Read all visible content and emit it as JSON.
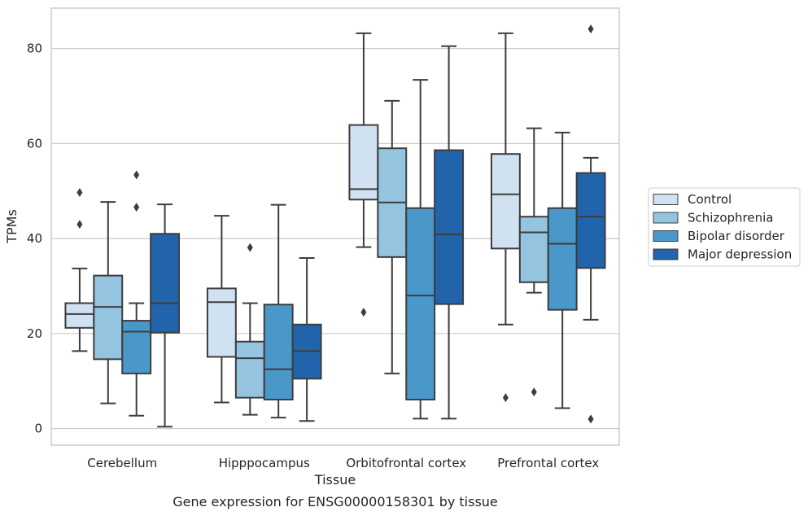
{
  "chart_data": {
    "type": "box",
    "title": "",
    "caption": "Gene expression for ENSG00000158301 by tissue",
    "xlabel": "Tissue",
    "ylabel": "TPMs",
    "ylim": [
      -3.5,
      88.5
    ],
    "yticks": [
      0,
      20,
      40,
      60,
      80
    ],
    "grid": "horizontal",
    "legend_position": "right",
    "categories": [
      "Cerebellum",
      "Hipppocampus",
      "Orbitofrontal cortex",
      "Prefrontal cortex"
    ],
    "series": [
      {
        "name": "Control",
        "color": "#d0e1f2",
        "boxes": [
          {
            "whislo": 16.3,
            "q1": 21.2,
            "med": 24.1,
            "q3": 26.4,
            "whishi": 33.7,
            "fliers": [
              49.7,
              43.0
            ]
          },
          {
            "whislo": 5.5,
            "q1": 15.1,
            "med": 26.6,
            "q3": 29.5,
            "whishi": 44.8,
            "fliers": []
          },
          {
            "whislo": 38.2,
            "q1": 48.2,
            "med": 50.4,
            "q3": 63.9,
            "whishi": 83.2,
            "fliers": [
              24.5
            ]
          },
          {
            "whislo": 21.9,
            "q1": 37.9,
            "med": 49.3,
            "q3": 57.8,
            "whishi": 83.2,
            "fliers": [
              6.5
            ]
          }
        ]
      },
      {
        "name": "Schizophrenia",
        "color": "#94c4df",
        "boxes": [
          {
            "whislo": 5.3,
            "q1": 14.6,
            "med": 25.6,
            "q3": 32.2,
            "whishi": 47.7,
            "fliers": []
          },
          {
            "whislo": 2.9,
            "q1": 6.5,
            "med": 14.8,
            "q3": 18.3,
            "whishi": 26.4,
            "fliers": [
              38.1
            ]
          },
          {
            "whislo": 11.6,
            "q1": 36.1,
            "med": 47.6,
            "q3": 59.0,
            "whishi": 69.0,
            "fliers": []
          },
          {
            "whislo": 28.6,
            "q1": 30.8,
            "med": 41.3,
            "q3": 44.6,
            "whishi": 63.2,
            "fliers": [
              7.7
            ]
          }
        ]
      },
      {
        "name": "Bipolar disorder",
        "color": "#4a98c9",
        "boxes": [
          {
            "whislo": 2.7,
            "q1": 11.6,
            "med": 20.4,
            "q3": 22.7,
            "whishi": 26.4,
            "fliers": [
              53.4,
              46.6
            ]
          },
          {
            "whislo": 2.3,
            "q1": 6.1,
            "med": 12.5,
            "q3": 26.1,
            "whishi": 47.1,
            "fliers": []
          },
          {
            "whislo": 2.1,
            "q1": 6.1,
            "med": 28.0,
            "q3": 46.4,
            "whishi": 73.4,
            "fliers": []
          },
          {
            "whislo": 4.3,
            "q1": 25.0,
            "med": 38.9,
            "q3": 46.4,
            "whishi": 62.3,
            "fliers": []
          }
        ]
      },
      {
        "name": "Major depression",
        "color": "#2164ab",
        "boxes": [
          {
            "whislo": 0.4,
            "q1": 20.2,
            "med": 26.4,
            "q3": 41.0,
            "whishi": 47.2,
            "fliers": []
          },
          {
            "whislo": 1.6,
            "q1": 10.5,
            "med": 16.3,
            "q3": 21.9,
            "whishi": 35.9,
            "fliers": []
          },
          {
            "whislo": 2.1,
            "q1": 26.2,
            "med": 40.9,
            "q3": 58.6,
            "whishi": 80.5,
            "fliers": []
          },
          {
            "whislo": 22.9,
            "q1": 33.8,
            "med": 44.6,
            "q3": 53.8,
            "whishi": 57.0,
            "fliers": [
              84.1,
              2.0
            ]
          }
        ]
      }
    ]
  }
}
